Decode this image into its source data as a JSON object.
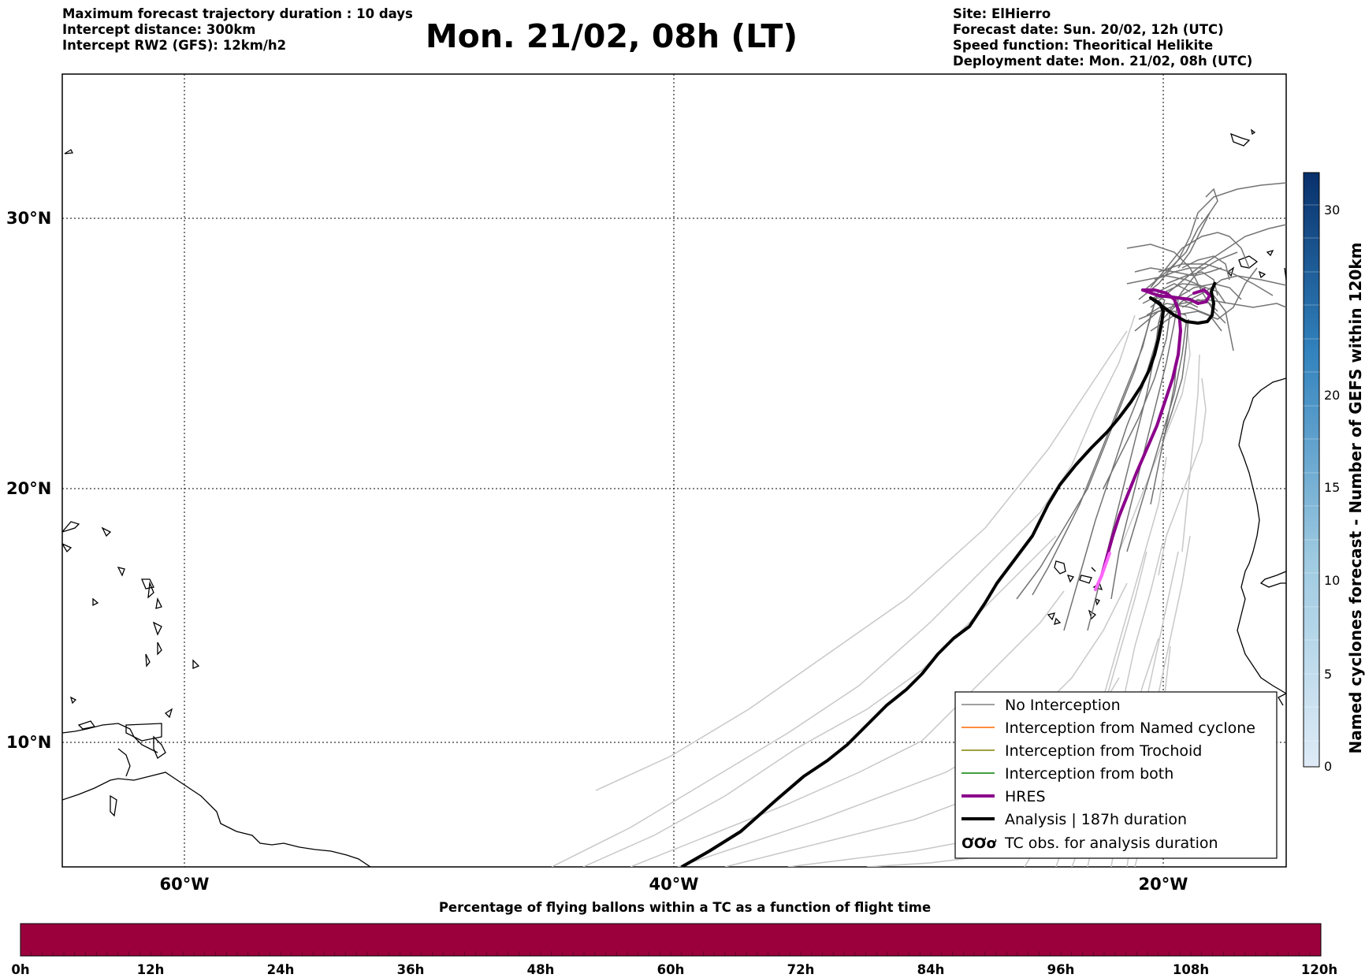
{
  "header": {
    "left_lines": [
      "Maximum forecast trajectory duration : 10 days",
      "Intercept distance: 300km",
      "Intercept RW2 (GFS):  12km/h2"
    ],
    "title": "Mon. 21/02, 08h (LT)",
    "right_lines": [
      "Site: ElHierro",
      "Forecast date: Sun. 20/02, 12h (UTC)",
      "Speed function: Theoritical Helikite",
      "Deployment date: Mon. 21/02, 08h (UTC)"
    ]
  },
  "map": {
    "lon_labels": [
      "60°W",
      "40°W",
      "20°W"
    ],
    "lat_labels": [
      "30°N",
      "20°N",
      "10°N"
    ],
    "legend": [
      {
        "label": "No Interception",
        "color": "#808080"
      },
      {
        "label": "Interception from Named cyclone",
        "color": "#ff6600"
      },
      {
        "label": "Interception from Trochoid",
        "color": "#808000"
      },
      {
        "label": "Interception from both",
        "color": "#008000"
      },
      {
        "label": "HRES",
        "color": "#8b008b"
      },
      {
        "label": "Analysis | 187h duration",
        "color": "#000000"
      },
      {
        "label": "TC obs. for analysis duration",
        "color": "#000000",
        "symbol": "ƠƠơ"
      }
    ]
  },
  "colorbar_right": {
    "label": "Named cyclones forecast - Number of GEFS within 120km",
    "ticks": [
      "0",
      "5",
      "10",
      "15",
      "20",
      "30"
    ],
    "colors": [
      "#deebf7",
      "#08306b"
    ]
  },
  "colorbar_bottom": {
    "title": "Percentage of flying ballons within a TC as a function of flight time",
    "ticks": [
      "0h",
      "12h",
      "24h",
      "36h",
      "48h",
      "60h",
      "72h",
      "84h",
      "96h",
      "108h",
      "120h"
    ],
    "fill_color": "#9b003c"
  }
}
